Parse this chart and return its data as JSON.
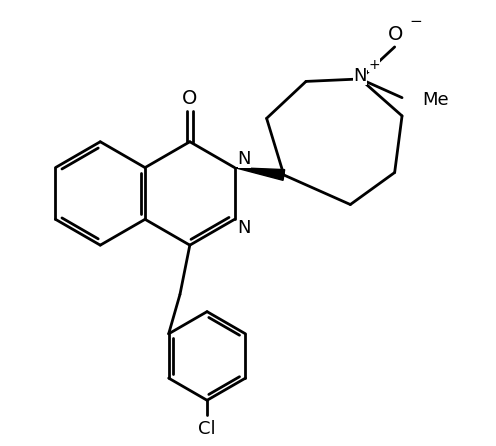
{
  "bg_color": "#ffffff",
  "bond_color": "#000000",
  "bond_width": 2.0,
  "font_size": 13,
  "figsize": [
    4.96,
    4.46
  ],
  "dpi": 100,
  "xlim": [
    0,
    10
  ],
  "ylim": [
    0,
    9
  ]
}
